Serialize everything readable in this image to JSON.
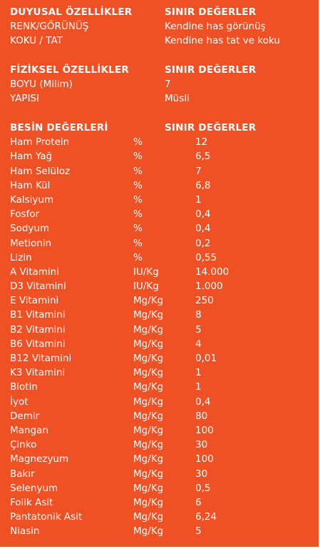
{
  "duyusal": {
    "header": {
      "label": "DUYUSAL ÖZELLİKLER",
      "limit": "SINIR DEĞERLER"
    },
    "rows": [
      {
        "label": "RENK/GÖRÜNÜŞ",
        "value": "Kendine has görünüş"
      },
      {
        "label": "KOKU / TAT",
        "value": "Kendine has tat ve koku"
      }
    ]
  },
  "fiziksel": {
    "header": {
      "label": "FİZİKSEL ÖZELLİKLER",
      "limit": "SINIR DEĞERLER"
    },
    "rows": [
      {
        "label": "BOYU (Milim)",
        "value": "7"
      },
      {
        "label": "YAPISI",
        "value": "Müsli"
      }
    ]
  },
  "besin": {
    "header": {
      "label": "BESİN DEĞERLERİ",
      "limit": "SINIR DEĞERLER"
    },
    "rows": [
      {
        "name": "Ham Protein",
        "unit": "%",
        "value": "12"
      },
      {
        "name": "Ham Yağ",
        "unit": "%",
        "value": "6,5"
      },
      {
        "name": "Ham Selüloz",
        "unit": "%",
        "value": "7"
      },
      {
        "name": "Ham Kül",
        "unit": "%",
        "value": "6,8"
      },
      {
        "name": "Kalsiyum",
        "unit": "%",
        "value": "1"
      },
      {
        "name": "Fosfor",
        "unit": "%",
        "value": "0,4"
      },
      {
        "name": "Sodyum",
        "unit": "%",
        "value": "0,4"
      },
      {
        "name": "Metionin",
        "unit": "%",
        "value": "0,2"
      },
      {
        "name": "Lizin",
        "unit": "%",
        "value": "0,55"
      },
      {
        "name": "A Vitamini",
        "unit": "IU/Kg",
        "value": "14.000"
      },
      {
        "name": "D3 Vitamini",
        "unit": "IU/Kg",
        "value": "1.000"
      },
      {
        "name": "E Vitamini",
        "unit": "Mg/Kg",
        "value": "250"
      },
      {
        "name": "B1 Vitamini",
        "unit": "Mg/Kg",
        "value": "8"
      },
      {
        "name": "B2 Vitamini",
        "unit": "Mg/Kg",
        "value": "5"
      },
      {
        "name": "B6 Vitamini",
        "unit": "Mg/Kg",
        "value": "4"
      },
      {
        "name": "B12 Vitamini",
        "unit": "Mg/Kg",
        "value": "0,01"
      },
      {
        "name": "K3 Vitamini",
        "unit": "Mg/Kg",
        "value": "1"
      },
      {
        "name": "Biotin",
        "unit": "Mg/Kg",
        "value": "1"
      },
      {
        "name": "İyot",
        "unit": "Mg/Kg",
        "value": "0,4"
      },
      {
        "name": "Demir",
        "unit": "Mg/Kg",
        "value": "80"
      },
      {
        "name": "Mangan",
        "unit": "Mg/Kg",
        "value": "100"
      },
      {
        "name": "Çinko",
        "unit": "Mg/Kg",
        "value": "30"
      },
      {
        "name": "Magnezyum",
        "unit": "Mg/Kg",
        "value": "100"
      },
      {
        "name": "Bakır",
        "unit": "Mg/Kg",
        "value": "30"
      },
      {
        "name": "Selenyum",
        "unit": "Mg/Kg",
        "value": "0,5"
      },
      {
        "name": "Folik Asit",
        "unit": "Mg/Kg",
        "value": "6"
      },
      {
        "name": "Pantatonik Asit",
        "unit": "Mg/Kg",
        "value": "6,24"
      },
      {
        "name": "Niasin",
        "unit": "Mg/Kg",
        "value": "5"
      }
    ]
  },
  "colors": {
    "background": "#f05124",
    "text": "#ffffff",
    "border": "#ffffff"
  }
}
